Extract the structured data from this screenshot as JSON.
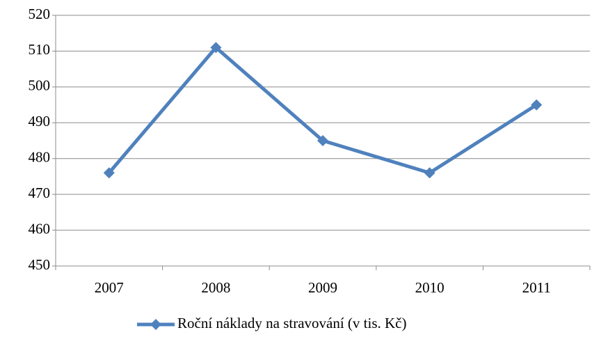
{
  "chart_data": {
    "type": "line",
    "categories": [
      "2007",
      "2008",
      "2009",
      "2010",
      "2011"
    ],
    "series": [
      {
        "name": "Roční náklady na stravování (v tis. Kč)",
        "color": "#4f81bd",
        "values": [
          476,
          511,
          485,
          476,
          495
        ]
      }
    ],
    "ylim": [
      450,
      520
    ],
    "yticks": [
      450,
      460,
      470,
      480,
      490,
      500,
      510,
      520
    ],
    "grid": true,
    "legend": "bottom"
  }
}
